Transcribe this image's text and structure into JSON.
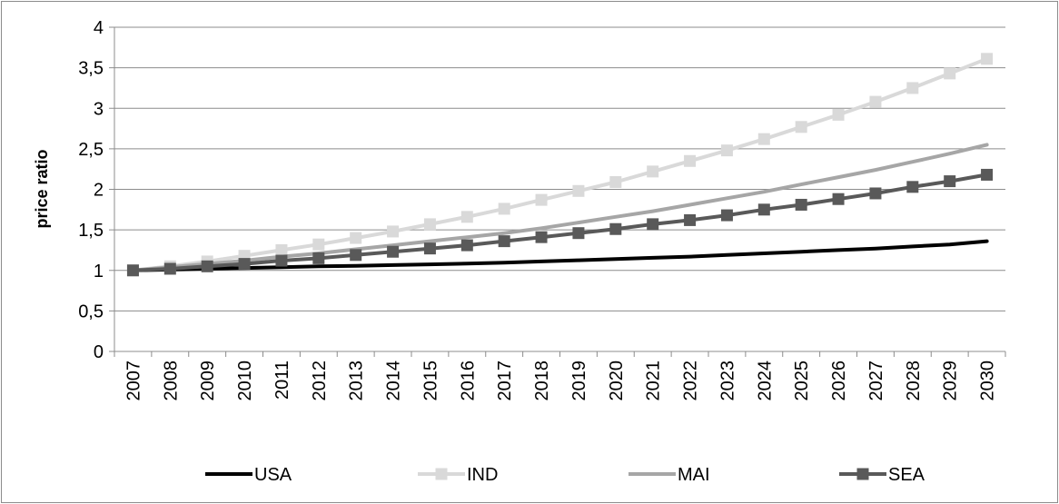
{
  "chart_data": {
    "type": "line",
    "ylabel": "price ratio",
    "ylim": [
      0,
      4
    ],
    "yticks": [
      "0",
      "0,5",
      "1",
      "1,5",
      "2",
      "2,5",
      "3",
      "3,5",
      "4"
    ],
    "grid": true,
    "legend_position": "bottom",
    "x": [
      "2007",
      "2008",
      "2009",
      "2010",
      "2011",
      "2012",
      "2013",
      "2014",
      "2015",
      "2016",
      "2017",
      "2018",
      "2019",
      "2020",
      "2021",
      "2022",
      "2023",
      "2024",
      "2025",
      "2026",
      "2027",
      "2028",
      "2029",
      "2030"
    ],
    "series": [
      {
        "name": "USA",
        "color": "#000000",
        "marker": "none",
        "values": [
          1.0,
          1.01,
          1.02,
          1.03,
          1.04,
          1.05,
          1.055,
          1.065,
          1.075,
          1.085,
          1.095,
          1.11,
          1.125,
          1.14,
          1.155,
          1.17,
          1.19,
          1.21,
          1.23,
          1.25,
          1.27,
          1.295,
          1.32,
          1.36
        ]
      },
      {
        "name": "IND",
        "color": "#d9d9d9",
        "marker": "square",
        "values": [
          1.0,
          1.05,
          1.11,
          1.18,
          1.25,
          1.32,
          1.4,
          1.48,
          1.57,
          1.66,
          1.76,
          1.87,
          1.98,
          2.09,
          2.22,
          2.35,
          2.48,
          2.62,
          2.77,
          2.92,
          3.08,
          3.25,
          3.43,
          3.61
        ]
      },
      {
        "name": "MAI",
        "color": "#a6a6a6",
        "marker": "none",
        "values": [
          1.0,
          1.04,
          1.08,
          1.12,
          1.17,
          1.21,
          1.26,
          1.31,
          1.36,
          1.41,
          1.46,
          1.52,
          1.59,
          1.66,
          1.73,
          1.81,
          1.89,
          1.97,
          2.06,
          2.15,
          2.24,
          2.34,
          2.44,
          2.55
        ]
      },
      {
        "name": "SEA",
        "color": "#595959",
        "marker": "square",
        "values": [
          1.0,
          1.02,
          1.05,
          1.08,
          1.12,
          1.15,
          1.19,
          1.23,
          1.27,
          1.31,
          1.36,
          1.41,
          1.46,
          1.51,
          1.57,
          1.62,
          1.68,
          1.75,
          1.81,
          1.88,
          1.95,
          2.03,
          2.1,
          2.18
        ]
      }
    ]
  }
}
